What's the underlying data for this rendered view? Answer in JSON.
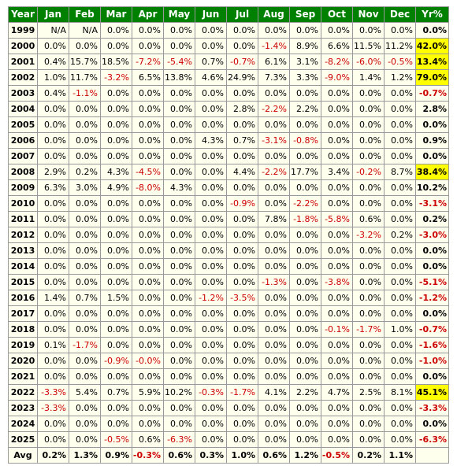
{
  "colors": {
    "header_bg": "#008000",
    "header_text": "#ffffff",
    "cell_bg": "#ffffee",
    "grid_line": "#999999",
    "negative_text": "#cc0000",
    "highlight_bg": "#ffff00"
  },
  "table": {
    "headers": [
      "Year",
      "Jan",
      "Feb",
      "Mar",
      "Apr",
      "May",
      "Jun",
      "Jul",
      "Aug",
      "Sep",
      "Oct",
      "Nov",
      "Dec",
      "Yr%"
    ],
    "rows": [
      {
        "year": "1999",
        "months": [
          "N/A",
          "N/A",
          "0.0%",
          "0.0%",
          "0.0%",
          "0.0%",
          "0.0%",
          "0.0%",
          "0.0%",
          "0.0%",
          "0.0%",
          "0.0%"
        ],
        "yr": "0.0%"
      },
      {
        "year": "2000",
        "months": [
          "0.0%",
          "0.0%",
          "0.0%",
          "0.0%",
          "0.0%",
          "0.0%",
          "0.0%",
          "-1.4%",
          "8.9%",
          "6.6%",
          "11.5%",
          "11.2%"
        ],
        "yr": "42.0%",
        "highlight": true
      },
      {
        "year": "2001",
        "months": [
          "0.4%",
          "15.7%",
          "18.5%",
          "-7.2%",
          "-5.4%",
          "0.7%",
          "-0.7%",
          "6.1%",
          "3.1%",
          "-8.2%",
          "-6.0%",
          "-0.5%"
        ],
        "yr": "13.4%",
        "highlight": true
      },
      {
        "year": "2002",
        "months": [
          "1.0%",
          "11.7%",
          "-3.2%",
          "6.5%",
          "13.8%",
          "4.6%",
          "24.9%",
          "7.3%",
          "3.3%",
          "-9.0%",
          "1.4%",
          "1.2%"
        ],
        "yr": "79.0%",
        "highlight": true
      },
      {
        "year": "2003",
        "months": [
          "0.4%",
          "-1.1%",
          "0.0%",
          "0.0%",
          "0.0%",
          "0.0%",
          "0.0%",
          "0.0%",
          "0.0%",
          "0.0%",
          "0.0%",
          "0.0%"
        ],
        "yr": "-0.7%"
      },
      {
        "year": "2004",
        "months": [
          "0.0%",
          "0.0%",
          "0.0%",
          "0.0%",
          "0.0%",
          "0.0%",
          "2.8%",
          "-2.2%",
          "2.2%",
          "0.0%",
          "0.0%",
          "0.0%"
        ],
        "yr": "2.8%"
      },
      {
        "year": "2005",
        "months": [
          "0.0%",
          "0.0%",
          "0.0%",
          "0.0%",
          "0.0%",
          "0.0%",
          "0.0%",
          "0.0%",
          "0.0%",
          "0.0%",
          "0.0%",
          "0.0%"
        ],
        "yr": "0.0%"
      },
      {
        "year": "2006",
        "months": [
          "0.0%",
          "0.0%",
          "0.0%",
          "0.0%",
          "0.0%",
          "4.3%",
          "0.7%",
          "-3.1%",
          "-0.8%",
          "0.0%",
          "0.0%",
          "0.0%"
        ],
        "yr": "0.9%"
      },
      {
        "year": "2007",
        "months": [
          "0.0%",
          "0.0%",
          "0.0%",
          "0.0%",
          "0.0%",
          "0.0%",
          "0.0%",
          "0.0%",
          "0.0%",
          "0.0%",
          "0.0%",
          "0.0%"
        ],
        "yr": "0.0%"
      },
      {
        "year": "2008",
        "months": [
          "2.9%",
          "0.2%",
          "4.3%",
          "-4.5%",
          "0.0%",
          "0.0%",
          "4.4%",
          "-2.2%",
          "17.7%",
          "3.4%",
          "-0.2%",
          "8.7%"
        ],
        "yr": "38.4%",
        "highlight": true
      },
      {
        "year": "2009",
        "months": [
          "6.3%",
          "3.0%",
          "4.9%",
          "-8.0%",
          "4.3%",
          "0.0%",
          "0.0%",
          "0.0%",
          "0.0%",
          "0.0%",
          "0.0%",
          "0.0%"
        ],
        "yr": "10.2%"
      },
      {
        "year": "2010",
        "months": [
          "0.0%",
          "0.0%",
          "0.0%",
          "0.0%",
          "0.0%",
          "0.0%",
          "-0.9%",
          "0.0%",
          "-2.2%",
          "0.0%",
          "0.0%",
          "0.0%"
        ],
        "yr": "-3.1%"
      },
      {
        "year": "2011",
        "months": [
          "0.0%",
          "0.0%",
          "0.0%",
          "0.0%",
          "0.0%",
          "0.0%",
          "0.0%",
          "7.8%",
          "-1.8%",
          "-5.8%",
          "0.6%",
          "0.0%"
        ],
        "yr": "0.2%"
      },
      {
        "year": "2012",
        "months": [
          "0.0%",
          "0.0%",
          "0.0%",
          "0.0%",
          "0.0%",
          "0.0%",
          "0.0%",
          "0.0%",
          "0.0%",
          "0.0%",
          "-3.2%",
          "0.2%"
        ],
        "yr": "-3.0%"
      },
      {
        "year": "2013",
        "months": [
          "0.0%",
          "0.0%",
          "0.0%",
          "0.0%",
          "0.0%",
          "0.0%",
          "0.0%",
          "0.0%",
          "0.0%",
          "0.0%",
          "0.0%",
          "0.0%"
        ],
        "yr": "0.0%"
      },
      {
        "year": "2014",
        "months": [
          "0.0%",
          "0.0%",
          "0.0%",
          "0.0%",
          "0.0%",
          "0.0%",
          "0.0%",
          "0.0%",
          "0.0%",
          "0.0%",
          "0.0%",
          "0.0%"
        ],
        "yr": "0.0%"
      },
      {
        "year": "2015",
        "months": [
          "0.0%",
          "0.0%",
          "0.0%",
          "0.0%",
          "0.0%",
          "0.0%",
          "0.0%",
          "-1.3%",
          "0.0%",
          "-3.8%",
          "0.0%",
          "0.0%"
        ],
        "yr": "-5.1%"
      },
      {
        "year": "2016",
        "months": [
          "1.4%",
          "0.7%",
          "1.5%",
          "0.0%",
          "0.0%",
          "-1.2%",
          "-3.5%",
          "0.0%",
          "0.0%",
          "0.0%",
          "0.0%",
          "0.0%"
        ],
        "yr": "-1.2%"
      },
      {
        "year": "2017",
        "months": [
          "0.0%",
          "0.0%",
          "0.0%",
          "0.0%",
          "0.0%",
          "0.0%",
          "0.0%",
          "0.0%",
          "0.0%",
          "0.0%",
          "0.0%",
          "0.0%"
        ],
        "yr": "0.0%"
      },
      {
        "year": "2018",
        "months": [
          "0.0%",
          "0.0%",
          "0.0%",
          "0.0%",
          "0.0%",
          "0.0%",
          "0.0%",
          "0.0%",
          "0.0%",
          "-0.1%",
          "-1.7%",
          "1.0%"
        ],
        "yr": "-0.7%"
      },
      {
        "year": "2019",
        "months": [
          "0.1%",
          "-1.7%",
          "0.0%",
          "0.0%",
          "0.0%",
          "0.0%",
          "0.0%",
          "0.0%",
          "0.0%",
          "0.0%",
          "0.0%",
          "0.0%"
        ],
        "yr": "-1.6%"
      },
      {
        "year": "2020",
        "months": [
          "0.0%",
          "0.0%",
          "-0.9%",
          "-0.0%",
          "0.0%",
          "0.0%",
          "0.0%",
          "0.0%",
          "0.0%",
          "0.0%",
          "0.0%",
          "0.0%"
        ],
        "yr": "-1.0%"
      },
      {
        "year": "2021",
        "months": [
          "0.0%",
          "0.0%",
          "0.0%",
          "0.0%",
          "0.0%",
          "0.0%",
          "0.0%",
          "0.0%",
          "0.0%",
          "0.0%",
          "0.0%",
          "0.0%"
        ],
        "yr": "0.0%"
      },
      {
        "year": "2022",
        "months": [
          "-3.3%",
          "5.4%",
          "0.7%",
          "5.9%",
          "10.2%",
          "-0.3%",
          "-1.7%",
          "4.1%",
          "2.2%",
          "4.7%",
          "2.5%",
          "8.1%"
        ],
        "yr": "45.1%",
        "highlight": true
      },
      {
        "year": "2023",
        "months": [
          "-3.3%",
          "0.0%",
          "0.0%",
          "0.0%",
          "0.0%",
          "0.0%",
          "0.0%",
          "0.0%",
          "0.0%",
          "0.0%",
          "0.0%",
          "0.0%"
        ],
        "yr": "-3.3%"
      },
      {
        "year": "2024",
        "months": [
          "0.0%",
          "0.0%",
          "0.0%",
          "0.0%",
          "0.0%",
          "0.0%",
          "0.0%",
          "0.0%",
          "0.0%",
          "0.0%",
          "0.0%",
          "0.0%"
        ],
        "yr": "0.0%"
      },
      {
        "year": "2025",
        "months": [
          "0.0%",
          "0.0%",
          "-0.5%",
          "0.6%",
          "-6.3%",
          "0.0%",
          "0.0%",
          "0.0%",
          "0.0%",
          "0.0%",
          "0.0%",
          "0.0%"
        ],
        "yr": "-6.3%"
      }
    ],
    "avg": {
      "label": "Avg",
      "months": [
        "0.2%",
        "1.3%",
        "0.9%",
        "-0.3%",
        "0.6%",
        "0.3%",
        "1.0%",
        "0.6%",
        "1.2%",
        "-0.5%",
        "0.2%",
        "1.1%"
      ]
    }
  }
}
